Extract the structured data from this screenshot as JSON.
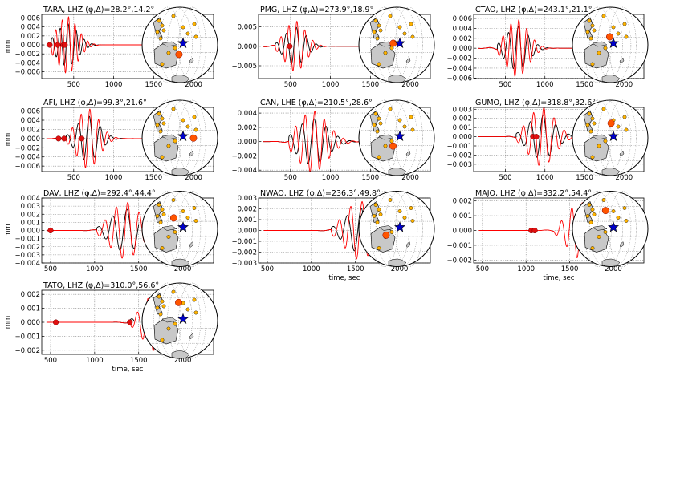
{
  "figure": {
    "observed_color": "#000000",
    "synthetic_color": "#ff0000",
    "event_marker_color": "#0000cc",
    "station_marker_color": "#ffb300",
    "active_station_color": "#ff5500",
    "land_color": "#c8c8c8"
  },
  "chart_data": [
    {
      "type": "line",
      "title": "TARA, LHZ (φ,Δ)=28.2°,14.2°",
      "ylabel": "mm",
      "xlabel": "",
      "xlim": [
        100,
        2250
      ],
      "ylim": [
        -0.0075,
        0.0068
      ],
      "xticks": [
        500,
        1000,
        1500,
        2000
      ],
      "xtick_labels": [
        "500",
        "1000",
        "1500",
        "2000"
      ],
      "yticks": [
        -0.006,
        -0.004,
        -0.002,
        0.0,
        0.002,
        0.004,
        0.006
      ],
      "ytick_labels": [
        "−0.006",
        "−0.004",
        "−0.002",
        "0.000",
        "0.002",
        "0.004",
        "0.006"
      ],
      "picks": [
        200,
        300,
        370,
        390
      ],
      "wave": {
        "t0": 420,
        "period": 80,
        "amp": 0.0063,
        "decay": 140,
        "end": 1550
      },
      "station_angle": 250,
      "station_r": 0.45
    },
    {
      "type": "line",
      "title": "PMG, LHZ (φ,Δ)=273.9°,18.9°",
      "ylabel": "",
      "xlabel": "",
      "xlim": [
        100,
        2250
      ],
      "ylim": [
        -0.0083,
        0.0082
      ],
      "xticks": [
        500,
        1000,
        1500,
        2000
      ],
      "xtick_labels": [
        "500",
        "1000",
        "1500",
        "2000"
      ],
      "yticks": [
        -0.005,
        0.0,
        0.005
      ],
      "ytick_labels": [
        "−0.005",
        "0.000",
        "0.005"
      ],
      "picks": [
        490
      ],
      "wave": {
        "t0": 560,
        "period": 100,
        "amp": 0.0065,
        "decay": 140,
        "end": 1550
      },
      "station_angle": 180,
      "station_r": 0.25
    },
    {
      "type": "line",
      "title": "CTAO, LHZ (φ,Δ)=243.1°,21.1°",
      "ylabel": "",
      "xlabel": "",
      "xlim": [
        100,
        2250
      ],
      "ylim": [
        -0.0061,
        0.0068
      ],
      "xticks": [
        500,
        1000,
        1500,
        2000
      ],
      "xtick_labels": [
        "500",
        "1000",
        "1500",
        "2000"
      ],
      "yticks": [
        -0.006,
        -0.004,
        -0.002,
        0.0,
        0.002,
        0.004,
        0.006
      ],
      "ytick_labels": [
        "−0.006",
        "−0.004",
        "−0.002",
        "0.000",
        "0.002",
        "0.004",
        "0.006"
      ],
      "picks": [],
      "wave": {
        "t0": 650,
        "period": 100,
        "amp": 0.0058,
        "decay": 150,
        "end": 1550
      },
      "station_angle": 120,
      "station_r": 0.28
    },
    {
      "type": "line",
      "title": "AFI, LHZ (φ,Δ)=99.3°,21.6°",
      "ylabel": "mm",
      "xlabel": "",
      "xlim": [
        100,
        2250
      ],
      "ylim": [
        -0.0072,
        0.0068
      ],
      "xticks": [
        500,
        1000,
        1500,
        2000
      ],
      "xtick_labels": [
        "500",
        "1000",
        "1500",
        "2000"
      ],
      "yticks": [
        -0.006,
        -0.004,
        -0.002,
        0.0,
        0.002,
        0.004,
        0.006
      ],
      "ytick_labels": [
        "−0.006",
        "−0.004",
        "−0.002",
        "0.000",
        "0.002",
        "0.004",
        "0.006"
      ],
      "picks": [
        310,
        380,
        600
      ],
      "wave": {
        "t0": 680,
        "period": 110,
        "amp": 0.0065,
        "decay": 150,
        "end": 1550
      },
      "station_angle": 350,
      "station_r": 0.4
    },
    {
      "type": "line",
      "title": "CAN, LHE (φ,Δ)=210.5°,28.6°",
      "ylabel": "",
      "xlabel": "",
      "xlim": [
        100,
        2250
      ],
      "ylim": [
        -0.0042,
        0.0048
      ],
      "xticks": [
        500,
        1000,
        1500,
        2000
      ],
      "xtick_labels": [
        "500",
        "1000",
        "1500",
        "2000"
      ],
      "yticks": [
        -0.004,
        -0.002,
        0.0,
        0.002,
        0.004
      ],
      "ytick_labels": [
        "−0.004",
        "−0.002",
        "0.000",
        "0.002",
        "0.004"
      ],
      "picks": [],
      "wave": {
        "t0": 780,
        "period": 120,
        "amp": 0.0043,
        "decay": 200,
        "end": 1550
      },
      "station_angle": 235,
      "station_r": 0.45
    },
    {
      "type": "line",
      "title": "GUMO, LHZ (φ,Δ)=318.8°,32.6°",
      "ylabel": "",
      "xlabel": "",
      "xlim": [
        100,
        2250
      ],
      "ylim": [
        -0.0038,
        0.0032
      ],
      "xticks": [
        500,
        1000,
        1500,
        2000
      ],
      "xtick_labels": [
        "500",
        "1000",
        "1500",
        "2000"
      ],
      "yticks": [
        -0.003,
        -0.002,
        -0.001,
        0.0,
        0.001,
        0.002,
        0.003
      ],
      "ytick_labels": [
        "−0.003",
        "−0.002",
        "−0.001",
        "0.000",
        "0.001",
        "0.002",
        "0.003"
      ],
      "picks": [
        850,
        890
      ],
      "wave": {
        "t0": 960,
        "period": 130,
        "amp": 0.0032,
        "decay": 180,
        "end": 1550
      },
      "station_angle": 100,
      "station_r": 0.5
    },
    {
      "type": "line",
      "title": "DAV, LHZ (φ,Δ)=292.4°,44.4°",
      "ylabel": "mm",
      "xlabel": "",
      "xlim": [
        400,
        2350
      ],
      "ylim": [
        -0.004,
        0.004
      ],
      "xticks": [
        500,
        1000,
        1500,
        2000
      ],
      "xtick_labels": [
        "500",
        "1000",
        "1500",
        "2000"
      ],
      "yticks": [
        -0.004,
        -0.003,
        -0.002,
        -0.001,
        0.0,
        0.001,
        0.002,
        0.003,
        0.004
      ],
      "ytick_labels": [
        "−0.004",
        "−0.003",
        "−0.002",
        "−0.001",
        "0.000",
        "0.001",
        "0.002",
        "0.003",
        "0.004"
      ],
      "picks": [
        500
      ],
      "wave": {
        "t0": 1350,
        "period": 130,
        "amp": 0.0035,
        "decay": 180,
        "end": 1500
      },
      "station_angle": 135,
      "station_r": 0.5
    },
    {
      "type": "line",
      "title": "NWAO, LHZ (φ,Δ)=236.3°,49.8°",
      "ylabel": "",
      "xlabel": "time, sec",
      "xlim": [
        400,
        2350
      ],
      "ylim": [
        -0.003,
        0.003
      ],
      "xticks": [
        500,
        1000,
        1500,
        2000
      ],
      "xtick_labels": [
        "500",
        "1000",
        "1500",
        "2000"
      ],
      "yticks": [
        -0.003,
        -0.002,
        -0.001,
        0.0,
        0.001,
        0.002,
        0.003
      ],
      "ytick_labels": [
        "−0.003",
        "−0.002",
        "−0.001",
        "0.000",
        "0.001",
        "0.002",
        "0.003"
      ],
      "picks": [],
      "wave": {
        "t0": 1550,
        "period": 130,
        "amp": 0.0027,
        "decay": 180,
        "end": 1600
      },
      "station_angle": 210,
      "station_r": 0.6
    },
    {
      "type": "line",
      "title": "MAJO, LHZ (φ,Δ)=332.2°,54.4°",
      "ylabel": "",
      "xlabel": "time, sec",
      "xlim": [
        400,
        2350
      ],
      "ylim": [
        -0.0022,
        0.0022
      ],
      "xticks": [
        500,
        1000,
        1500,
        2000
      ],
      "xtick_labels": [
        "500",
        "1000",
        "1500",
        "2000"
      ],
      "yticks": [
        -0.002,
        -0.001,
        0.0,
        0.001,
        0.002
      ],
      "ytick_labels": [
        "−0.002",
        "−0.001",
        "0.000",
        "0.001",
        "0.002"
      ],
      "picks": [
        1060,
        1100
      ],
      "wave": {
        "t0": 1620,
        "period": 120,
        "amp": 0.0019,
        "decay": 160,
        "end": 0
      },
      "station_angle": 115,
      "station_r": 0.7
    },
    {
      "type": "line",
      "title": "TATO, LHZ (φ,Δ)=310.0°,56.6°",
      "ylabel": "mm",
      "xlabel": "time, sec",
      "xlim": [
        400,
        2350
      ],
      "ylim": [
        -0.0023,
        0.0023
      ],
      "xticks": [
        500,
        1000,
        1500,
        2000
      ],
      "xtick_labels": [
        "500",
        "1000",
        "1500",
        "2000"
      ],
      "yticks": [
        -0.002,
        -0.001,
        0.0,
        0.001,
        0.002
      ],
      "ytick_labels": [
        "−0.002",
        "−0.001",
        "0.000",
        "0.001",
        "0.002"
      ],
      "picks": [
        560,
        1400
      ],
      "wave": {
        "t0": 1700,
        "period": 120,
        "amp": 0.0021,
        "decay": 160,
        "end": 1450
      },
      "station_angle": 105,
      "station_r": 0.65
    }
  ]
}
